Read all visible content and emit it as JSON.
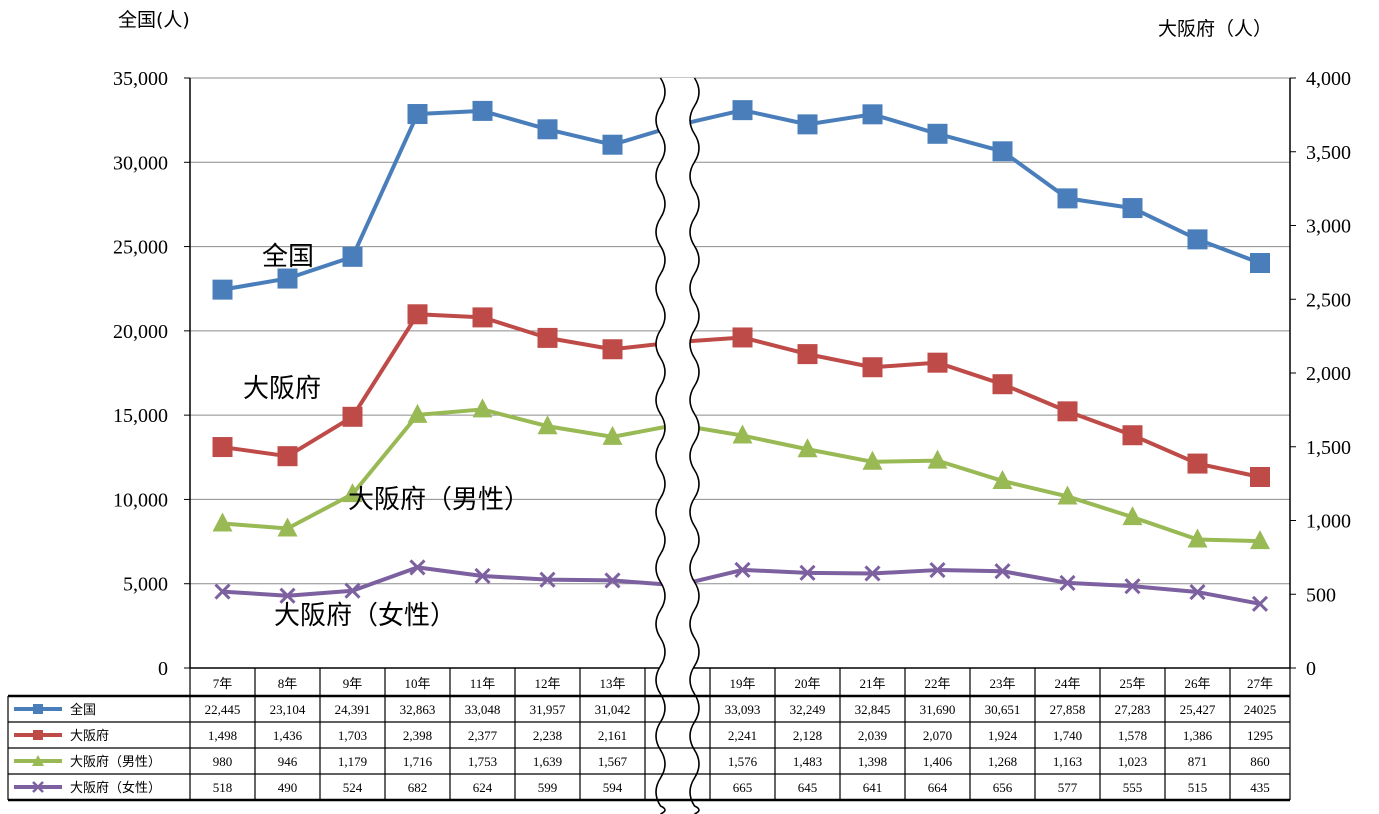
{
  "chart_data": {
    "type": "line",
    "left_axis_title": "全国(人)",
    "right_axis_title": "大阪府（人）",
    "y_left": {
      "min": 0,
      "max": 35000,
      "step": 5000,
      "ticks": [
        "0",
        "5,000",
        "10,000",
        "15,000",
        "20,000",
        "25,000",
        "30,000",
        "35,000"
      ]
    },
    "y_right": {
      "min": 0,
      "max": 4000,
      "step": 500,
      "ticks": [
        "0",
        "500",
        "1,000",
        "1,500",
        "2,000",
        "2,500",
        "3,000",
        "3,500",
        "4,000"
      ]
    },
    "grid": true,
    "categories": [
      "7年",
      "8年",
      "9年",
      "10年",
      "11年",
      "12年",
      "13年",
      "",
      "19年",
      "20年",
      "21年",
      "22年",
      "23年",
      "24年",
      "25年",
      "26年",
      "27年"
    ],
    "axis_break_after_category": 6,
    "series": [
      {
        "name": "全国",
        "axis": "left",
        "color": "#4A7EBB",
        "marker": "square",
        "values": [
          22445,
          23104,
          24391,
          32863,
          33048,
          31957,
          31042,
          32200,
          33093,
          32249,
          32845,
          31690,
          30651,
          27858,
          27283,
          25427,
          24025
        ],
        "table": [
          "22,445",
          "23,104",
          "24,391",
          "32,863",
          "33,048",
          "31,957",
          "31,042",
          "",
          "33,093",
          "32,249",
          "32,845",
          "31,690",
          "30,651",
          "27,858",
          "27,283",
          "25,427",
          "24025"
        ]
      },
      {
        "name": "大阪府",
        "axis": "right",
        "color": "#BE4B48",
        "marker": "square",
        "values": [
          1498,
          1436,
          1703,
          2398,
          2377,
          2238,
          2161,
          2210,
          2241,
          2128,
          2039,
          2070,
          1924,
          1740,
          1578,
          1386,
          1295
        ],
        "table": [
          "1,498",
          "1,436",
          "1,703",
          "2,398",
          "2,377",
          "2,238",
          "2,161",
          "",
          "2,241",
          "2,128",
          "2,039",
          "2,070",
          "1,924",
          "1,740",
          "1,578",
          "1,386",
          "1295"
        ]
      },
      {
        "name": "大阪府（男性）",
        "axis": "right",
        "color": "#98B954",
        "marker": "triangle",
        "values": [
          980,
          946,
          1179,
          1716,
          1753,
          1639,
          1567,
          1650,
          1576,
          1483,
          1398,
          1406,
          1268,
          1163,
          1023,
          871,
          860
        ],
        "table": [
          "980",
          "946",
          "1,179",
          "1,716",
          "1,753",
          "1,639",
          "1,567",
          "",
          "1,576",
          "1,483",
          "1,398",
          "1,406",
          "1,268",
          "1,163",
          "1,023",
          "871",
          "860"
        ]
      },
      {
        "name": "大阪府（女性）",
        "axis": "right",
        "color": "#7D60A0",
        "marker": "x",
        "values": [
          518,
          490,
          524,
          682,
          624,
          599,
          594,
          560,
          665,
          645,
          641,
          664,
          656,
          577,
          555,
          515,
          435
        ],
        "table": [
          "518",
          "490",
          "524",
          "682",
          "624",
          "599",
          "594",
          "",
          "665",
          "645",
          "641",
          "664",
          "656",
          "577",
          "555",
          "515",
          "435"
        ]
      }
    ],
    "annotations": [
      {
        "text": "全国",
        "series": 0
      },
      {
        "text": "大阪府",
        "series": 1
      },
      {
        "text": "大阪府（男性）",
        "series": 2
      },
      {
        "text": "大阪府（女性）",
        "series": 3
      }
    ]
  }
}
